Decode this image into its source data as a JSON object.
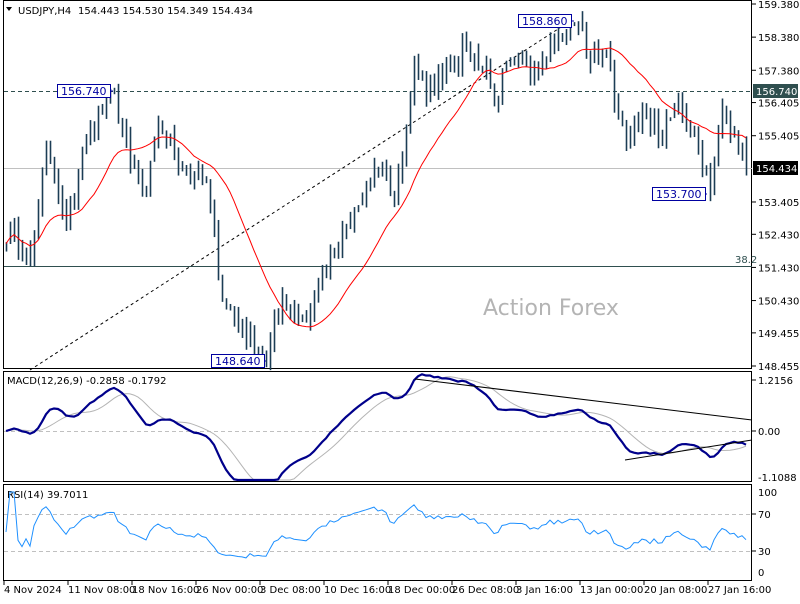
{
  "header": {
    "symbol": "USDJPY,H4",
    "ohlc": "154.443 154.530 154.349 154.434"
  },
  "watermark": "Action Forex",
  "colors": {
    "bars": "#1c3d55",
    "ma": "#ff0000",
    "macd": "#00008b",
    "signal": "#b4b4b4",
    "rsi": "#1e90ff",
    "current_price_bg": "#000000",
    "level_bg": "#2f4f4f"
  },
  "price_axis": {
    "ticks": [
      "159.380",
      "158.380",
      "157.380",
      "156.405",
      "155.405",
      "153.405",
      "152.430",
      "151.430",
      "150.430",
      "149.455",
      "148.455"
    ],
    "current_price": "154.434",
    "level_label": "156.740"
  },
  "annotations": {
    "high_left": "156.740",
    "high_top": "158.860",
    "low_bottom": "148.640",
    "low_right": "153.700",
    "fib_label": "38.2"
  },
  "macd": {
    "title": "MACD(12,26,9) -0.2858 -0.1792",
    "ticks": [
      "1.2156",
      "0.00",
      "-1.1088"
    ]
  },
  "rsi": {
    "title": "RSI(14) 39.7011",
    "ticks": [
      "100",
      "70",
      "30",
      "0"
    ]
  },
  "time_axis": [
    "4 Nov 2024",
    "11 Nov 08:00",
    "18 Nov 16:00",
    "26 Nov 00:00",
    "3 Dec 08:00",
    "10 Dec 16:00",
    "18 Dec 00:00",
    "26 Dec 08:00",
    "3 Jan 16:00",
    "13 Jan 00:00",
    "20 Jan 08:00",
    "27 Jan 16:00"
  ],
  "chart_data": {
    "type": "line",
    "title": "USDJPY,H4",
    "ylim": [
      148.455,
      159.38
    ],
    "price_keypoints": [
      [
        1,
        152.5
      ],
      [
        6,
        151.6
      ],
      [
        10,
        155
      ],
      [
        15,
        152.6
      ],
      [
        20,
        155.3
      ],
      [
        27,
        156.74
      ],
      [
        31,
        154.5
      ],
      [
        35,
        153.6
      ],
      [
        38,
        155.8
      ],
      [
        44,
        154.5
      ],
      [
        50,
        154
      ],
      [
        54,
        150.5
      ],
      [
        59,
        149.6
      ],
      [
        65,
        148.64
      ],
      [
        69,
        150.5
      ],
      [
        75,
        149.8
      ],
      [
        79,
        151.2
      ],
      [
        83,
        152
      ],
      [
        86,
        152.8
      ],
      [
        90,
        153.8
      ],
      [
        94,
        154.4
      ],
      [
        97,
        153.5
      ],
      [
        100,
        155.5
      ],
      [
        102,
        157.8
      ],
      [
        105,
        156.5
      ],
      [
        110,
        157.5
      ],
      [
        115,
        158
      ],
      [
        120,
        157.4
      ],
      [
        122,
        156.3
      ],
      [
        125,
        157.5
      ],
      [
        132,
        157.4
      ],
      [
        136,
        158.3
      ],
      [
        140,
        158.5
      ],
      [
        143,
        158.86
      ],
      [
        146,
        157.6
      ],
      [
        150,
        158
      ],
      [
        153,
        156
      ],
      [
        156,
        155.4
      ],
      [
        160,
        156
      ],
      [
        164,
        155.3
      ],
      [
        168,
        156.5
      ],
      [
        172,
        155.5
      ],
      [
        176,
        153.7
      ],
      [
        179,
        156.2
      ],
      [
        182,
        155.5
      ],
      [
        185,
        154.43
      ]
    ],
    "ma_period": 20,
    "levels": {
      "resistance": 156.74,
      "current": 154.434,
      "fib_38_2": 151.43
    }
  }
}
